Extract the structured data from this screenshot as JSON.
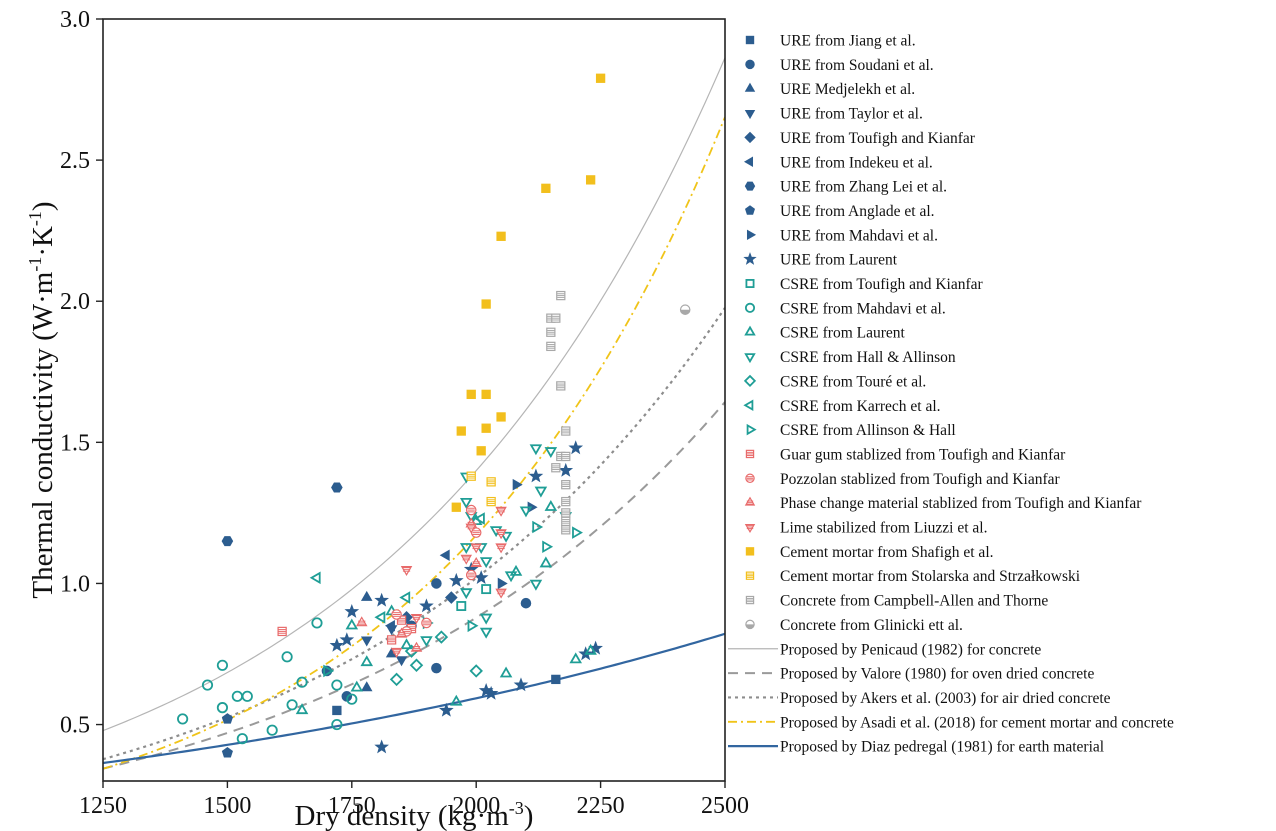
{
  "chart_data": {
    "type": "scatter",
    "title": "",
    "xlabel": "Dry density (kg·m",
    "xlabel_sup": "-3",
    "xlabel_close": ")",
    "ylabel": "Thermal conductivity (W·m",
    "ylabel_sup1": "-1",
    "ylabel_mid": "·K",
    "ylabel_sup2": "-1",
    "ylabel_close": ")",
    "xlim": [
      1250,
      2500
    ],
    "ylim": [
      0.3,
      3.0
    ],
    "xticks": [
      "1250",
      "1500",
      "1750",
      "2000",
      "2250",
      "2500"
    ],
    "yticks": [
      "0.5",
      "1.0",
      "1.5",
      "2.0",
      "2.5",
      "3.0"
    ],
    "grid": false,
    "legend_position": "right",
    "colors": {
      "ure": "#2c5d8f",
      "csre": "#1f9e96",
      "stabilized": "#e86a6a",
      "cement": "#f2bf1d",
      "concrete": "#a8a8a8",
      "penicaud": "#b5b5b5",
      "valore": "#9a9a9a",
      "akers": "#8d8d8d",
      "asadi": "#f0c419",
      "diaz": "#3266a0"
    },
    "series": [
      {
        "name": "URE from Jiang et al.",
        "marker": "square",
        "style": "filled",
        "color": "#2c5d8f",
        "points": [
          [
            2160,
            0.66
          ],
          [
            1720,
            0.55
          ]
        ]
      },
      {
        "name": "URE from Soudani et al.",
        "marker": "circle",
        "style": "filled",
        "color": "#2c5d8f",
        "points": [
          [
            1700,
            0.69
          ],
          [
            1740,
            0.6
          ],
          [
            1920,
            1.0
          ],
          [
            2100,
            0.93
          ],
          [
            1920,
            0.7
          ],
          [
            1870,
            0.85
          ]
        ]
      },
      {
        "name": "URE Medjelekh et al.",
        "marker": "triangle-up",
        "style": "filled",
        "color": "#2c5d8f",
        "points": [
          [
            1780,
            0.95
          ],
          [
            1780,
            0.63
          ],
          [
            1830,
            0.75
          ]
        ]
      },
      {
        "name": "URE from Taylor et al.",
        "marker": "triangle-down",
        "style": "filled",
        "color": "#2c5d8f",
        "points": [
          [
            1780,
            0.8
          ],
          [
            1830,
            0.84
          ],
          [
            1850,
            0.73
          ]
        ]
      },
      {
        "name": "URE from Toufigh and Kianfar",
        "marker": "diamond",
        "style": "filled",
        "color": "#2c5d8f",
        "points": [
          [
            1950,
            0.95
          ],
          [
            1860,
            0.88
          ]
        ]
      },
      {
        "name": "URE from Indekeu et al.",
        "marker": "triangle-left",
        "style": "filled",
        "color": "#2c5d8f",
        "points": [
          [
            1940,
            1.1
          ],
          [
            1830,
            0.85
          ]
        ]
      },
      {
        "name": "URE from Zhang Lei et al.",
        "marker": "hexagon",
        "style": "filled",
        "color": "#2c5d8f",
        "points": [
          [
            1500,
            1.15
          ],
          [
            1720,
            1.34
          ]
        ]
      },
      {
        "name": "URE from Anglade et al.",
        "marker": "pentagon",
        "style": "filled",
        "color": "#2c5d8f",
        "points": [
          [
            1500,
            0.4
          ],
          [
            1500,
            0.52
          ]
        ]
      },
      {
        "name": "URE from Mahdavi et al.",
        "marker": "triangle-right",
        "style": "filled",
        "color": "#2c5d8f",
        "points": [
          [
            2080,
            1.35
          ],
          [
            2050,
            1.0
          ],
          [
            2110,
            1.27
          ]
        ]
      },
      {
        "name": "URE from Laurent",
        "marker": "star",
        "style": "filled",
        "color": "#2c5d8f",
        "points": [
          [
            1720,
            0.78
          ],
          [
            1740,
            0.8
          ],
          [
            1810,
            0.42
          ],
          [
            1940,
            0.55
          ],
          [
            2020,
            0.62
          ],
          [
            2010,
            1.02
          ],
          [
            1960,
            1.01
          ],
          [
            2090,
            0.64
          ],
          [
            2220,
            0.75
          ],
          [
            2240,
            0.77
          ],
          [
            2200,
            1.48
          ],
          [
            2180,
            1.4
          ],
          [
            2120,
            1.38
          ],
          [
            1750,
            0.9
          ],
          [
            1810,
            0.94
          ],
          [
            1900,
            0.92
          ],
          [
            1990,
            1.05
          ],
          [
            2030,
            0.61
          ]
        ]
      },
      {
        "name": "CSRE from Toufigh and Kianfar",
        "marker": "square",
        "style": "open",
        "color": "#1f9e96",
        "points": [
          [
            1970,
            0.92
          ],
          [
            2020,
            0.98
          ]
        ]
      },
      {
        "name": "CSRE from Mahdavi et al.",
        "marker": "circle",
        "style": "open",
        "color": "#1f9e96",
        "points": [
          [
            1410,
            0.52
          ],
          [
            1460,
            0.64
          ],
          [
            1490,
            0.71
          ],
          [
            1490,
            0.56
          ],
          [
            1520,
            0.6
          ],
          [
            1530,
            0.45
          ],
          [
            1540,
            0.6
          ],
          [
            1590,
            0.48
          ],
          [
            1620,
            0.74
          ],
          [
            1630,
            0.57
          ],
          [
            1650,
            0.65
          ],
          [
            1680,
            0.86
          ],
          [
            1720,
            0.5
          ],
          [
            1720,
            0.64
          ],
          [
            1750,
            0.59
          ]
        ]
      },
      {
        "name": "CSRE from Laurent",
        "marker": "triangle-up",
        "style": "open",
        "color": "#1f9e96",
        "points": [
          [
            1650,
            0.55
          ],
          [
            1760,
            0.63
          ],
          [
            1780,
            0.72
          ],
          [
            1830,
            0.9
          ],
          [
            1860,
            0.78
          ],
          [
            1960,
            0.58
          ],
          [
            2060,
            0.68
          ],
          [
            2150,
            1.27
          ],
          [
            2200,
            0.73
          ],
          [
            2230,
            0.76
          ],
          [
            2000,
            1.22
          ],
          [
            2080,
            1.04
          ],
          [
            2140,
            1.07
          ],
          [
            1750,
            0.85
          ]
        ]
      },
      {
        "name": "CSRE from Hall & Allinson",
        "marker": "triangle-down",
        "style": "open",
        "color": "#1f9e96",
        "points": [
          [
            1980,
            1.38
          ],
          [
            1980,
            1.29
          ],
          [
            1980,
            1.13
          ],
          [
            1980,
            0.97
          ],
          [
            2020,
            1.08
          ],
          [
            2020,
            0.88
          ],
          [
            2020,
            0.83
          ],
          [
            2060,
            1.17
          ],
          [
            2070,
            1.03
          ],
          [
            2120,
            1.0
          ],
          [
            2120,
            1.48
          ],
          [
            2130,
            1.33
          ],
          [
            2150,
            1.47
          ],
          [
            2180,
            1.24
          ],
          [
            2100,
            1.26
          ],
          [
            2040,
            1.19
          ],
          [
            1990,
            1.24
          ],
          [
            1900,
            0.8
          ],
          [
            2010,
            1.13
          ]
        ]
      },
      {
        "name": "CSRE from Touré et al.",
        "marker": "diamond",
        "style": "open",
        "color": "#1f9e96",
        "points": [
          [
            1840,
            0.66
          ],
          [
            1880,
            0.71
          ],
          [
            1930,
            0.81
          ],
          [
            2000,
            0.69
          ],
          [
            1870,
            0.76
          ]
        ]
      },
      {
        "name": "CSRE from Karrech et al.",
        "marker": "triangle-left",
        "style": "open",
        "color": "#1f9e96",
        "points": [
          [
            1680,
            1.02
          ],
          [
            1810,
            0.88
          ],
          [
            1860,
            0.95
          ],
          [
            2010,
            1.23
          ]
        ]
      },
      {
        "name": "CSRE from Allinson & Hall",
        "marker": "triangle-right",
        "style": "open",
        "color": "#1f9e96",
        "points": [
          [
            1700,
            0.69
          ],
          [
            1900,
            0.86
          ],
          [
            1990,
            0.85
          ],
          [
            2120,
            1.2
          ],
          [
            2200,
            1.18
          ],
          [
            2140,
            1.13
          ]
        ]
      },
      {
        "name": "Guar gum stablized from Toufigh and Kianfar",
        "marker": "square",
        "style": "striped",
        "color": "#e86a6a",
        "points": [
          [
            1610,
            0.83
          ],
          [
            1830,
            0.8
          ],
          [
            1850,
            0.87
          ],
          [
            1870,
            0.84
          ]
        ]
      },
      {
        "name": "Pozzolan stablized from Toufigh and Kianfar",
        "marker": "circle",
        "style": "striped",
        "color": "#e86a6a",
        "points": [
          [
            1840,
            0.89
          ],
          [
            1860,
            0.83
          ],
          [
            1900,
            0.86
          ],
          [
            1990,
            1.03
          ],
          [
            2000,
            1.18
          ],
          [
            1990,
            1.26
          ]
        ]
      },
      {
        "name": "Phase change material stablized from Toufigh and Kianfar",
        "marker": "triangle-up",
        "style": "striped",
        "color": "#e86a6a",
        "points": [
          [
            1770,
            0.86
          ],
          [
            1850,
            0.82
          ],
          [
            1880,
            0.77
          ],
          [
            1990,
            1.21
          ],
          [
            2000,
            1.07
          ]
        ]
      },
      {
        "name": "Lime stabilized from Liuzzi et al.",
        "marker": "triangle-down",
        "style": "striped",
        "color": "#e86a6a",
        "points": [
          [
            1840,
            0.76
          ],
          [
            1860,
            1.05
          ],
          [
            1880,
            0.88
          ],
          [
            1990,
            1.2
          ],
          [
            2000,
            1.13
          ],
          [
            2050,
            1.26
          ],
          [
            2050,
            1.13
          ],
          [
            2050,
            0.97
          ],
          [
            1980,
            1.09
          ],
          [
            2050,
            1.18
          ]
        ]
      },
      {
        "name": "Cement mortar from Shafigh et al.",
        "marker": "square",
        "style": "filled",
        "color": "#f2bf1d",
        "points": [
          [
            1970,
            1.54
          ],
          [
            1990,
            1.67
          ],
          [
            2010,
            1.47
          ],
          [
            2020,
            1.55
          ],
          [
            2020,
            1.67
          ],
          [
            2020,
            1.99
          ],
          [
            2050,
            1.59
          ],
          [
            2050,
            2.23
          ],
          [
            2140,
            2.4
          ],
          [
            2230,
            2.43
          ],
          [
            2250,
            2.79
          ],
          [
            1960,
            1.27
          ]
        ]
      },
      {
        "name": "Cement mortar from Stolarska and Strzałkowski",
        "marker": "square",
        "style": "striped",
        "color": "#f2bf1d",
        "points": [
          [
            1990,
            1.38
          ],
          [
            2030,
            1.29
          ],
          [
            2030,
            1.36
          ]
        ]
      },
      {
        "name": "Concrete from Campbell-Allen and Thorne",
        "marker": "square",
        "style": "striped",
        "color": "#a8a8a8",
        "points": [
          [
            2150,
            1.94
          ],
          [
            2160,
            1.94
          ],
          [
            2150,
            1.89
          ],
          [
            2150,
            1.84
          ],
          [
            2170,
            2.02
          ],
          [
            2170,
            1.7
          ],
          [
            2180,
            1.54
          ],
          [
            2170,
            1.45
          ],
          [
            2180,
            1.45
          ],
          [
            2160,
            1.41
          ],
          [
            2180,
            1.35
          ],
          [
            2180,
            1.29
          ],
          [
            2180,
            1.25
          ],
          [
            2180,
            1.22
          ],
          [
            2180,
            1.19
          ]
        ]
      },
      {
        "name": "Concrete from Glinicki ett al.",
        "marker": "circle",
        "style": "half",
        "color": "#a8a8a8",
        "points": [
          [
            2420,
            1.97
          ]
        ]
      }
    ],
    "lines": [
      {
        "name": "Proposed by Penicaud (1982) for concrete",
        "a": 0.08,
        "b": 0.001431,
        "color": "#b5b5b5",
        "dash": "",
        "width": 1.2
      },
      {
        "name": "Proposed by Valore (1980) for oven dried concrete",
        "a": 0.072,
        "b": 0.001251,
        "color": "#9a9a9a",
        "dash": "10 7",
        "width": 2.0
      },
      {
        "name": "Proposed by Akers et al. (2003) for air dried concrete",
        "a": 0.072,
        "b": 0.001325,
        "color": "#8d8d8d",
        "dash": "3 4",
        "width": 2.2
      },
      {
        "name": "Proposed by Asadi et al. (2018) for cement mortar and concrete",
        "a": 0.0444,
        "b": 0.001636,
        "color": "#f0c419",
        "dash": "9 4 2 4",
        "width": 1.8
      },
      {
        "name": "Proposed by Diaz pedregal (1981) for earth material",
        "a": 0.161,
        "b": 0.000652,
        "color": "#3266a0",
        "dash": "",
        "width": 2.2
      }
    ]
  }
}
